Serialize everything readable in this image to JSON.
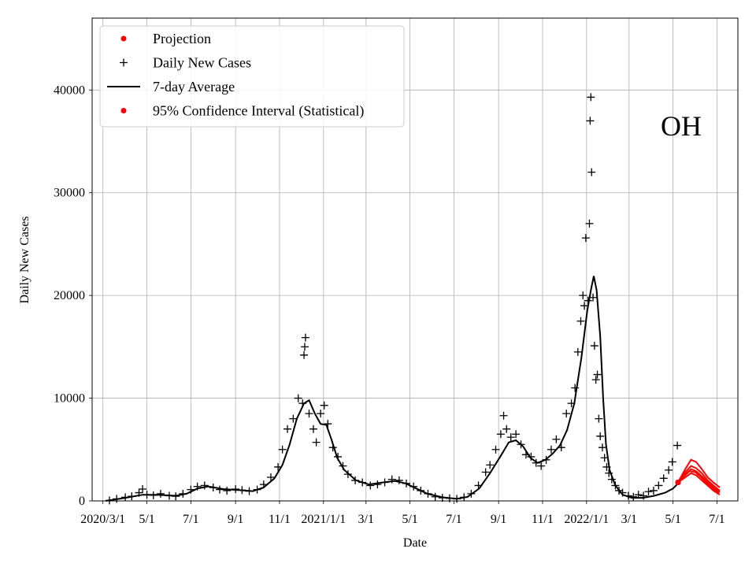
{
  "chart_data": {
    "type": "line",
    "annotation": "OH",
    "xlabel": "Date",
    "ylabel": "Daily New Cases",
    "ylim": [
      0,
      47000
    ],
    "xlim": [
      "2020-02-15",
      "2022-07-30"
    ],
    "grid": true,
    "legend": {
      "placement": "upper-left",
      "entries": [
        {
          "label": "Projection",
          "marker": "dot",
          "color": "#ff0000"
        },
        {
          "label": "Daily New Cases",
          "marker": "plus",
          "color": "#000000"
        },
        {
          "label": "7-day Average",
          "marker": "line",
          "color": "#000000"
        },
        {
          "label": "95% Confidence Interval (Statistical)",
          "marker": "dot",
          "color": "#ff0000"
        }
      ]
    },
    "x_ticks": [
      {
        "date": "2020-03-01",
        "label": "2020/3/1"
      },
      {
        "date": "2020-05-01",
        "label": "5/1"
      },
      {
        "date": "2020-07-01",
        "label": "7/1"
      },
      {
        "date": "2020-09-01",
        "label": "9/1"
      },
      {
        "date": "2020-11-01",
        "label": "11/1"
      },
      {
        "date": "2021-01-01",
        "label": "2021/1/1"
      },
      {
        "date": "2021-03-01",
        "label": "3/1"
      },
      {
        "date": "2021-05-01",
        "label": "5/1"
      },
      {
        "date": "2021-07-01",
        "label": "7/1"
      },
      {
        "date": "2021-09-01",
        "label": "9/1"
      },
      {
        "date": "2021-11-01",
        "label": "11/1"
      },
      {
        "date": "2022-01-01",
        "label": "2022/1/1"
      },
      {
        "date": "2022-03-01",
        "label": "3/1"
      },
      {
        "date": "2022-05-01",
        "label": "5/1"
      },
      {
        "date": "2022-07-01",
        "label": "7/1"
      }
    ],
    "y_ticks": [
      0,
      10000,
      20000,
      30000,
      40000
    ],
    "series": [
      {
        "name": "Daily New Cases",
        "kind": "scatter",
        "marker": "plus",
        "color": "#000000",
        "points": [
          [
            "2020-03-10",
            50
          ],
          [
            "2020-03-20",
            200
          ],
          [
            "2020-04-01",
            350
          ],
          [
            "2020-04-10",
            450
          ],
          [
            "2020-04-20",
            800
          ],
          [
            "2020-04-25",
            1150
          ],
          [
            "2020-05-01",
            600
          ],
          [
            "2020-05-10",
            550
          ],
          [
            "2020-05-20",
            700
          ],
          [
            "2020-06-01",
            500
          ],
          [
            "2020-06-10",
            450
          ],
          [
            "2020-06-20",
            700
          ],
          [
            "2020-07-01",
            1100
          ],
          [
            "2020-07-10",
            1400
          ],
          [
            "2020-07-20",
            1500
          ],
          [
            "2020-08-01",
            1300
          ],
          [
            "2020-08-10",
            1100
          ],
          [
            "2020-08-20",
            1000
          ],
          [
            "2020-09-01",
            1150
          ],
          [
            "2020-09-10",
            1050
          ],
          [
            "2020-09-20",
            950
          ],
          [
            "2020-10-01",
            1100
          ],
          [
            "2020-10-10",
            1600
          ],
          [
            "2020-10-20",
            2300
          ],
          [
            "2020-10-30",
            3300
          ],
          [
            "2020-11-05",
            5000
          ],
          [
            "2020-11-12",
            7000
          ],
          [
            "2020-11-20",
            8000
          ],
          [
            "2020-11-27",
            10000
          ],
          [
            "2020-12-03",
            9500
          ],
          [
            "2020-12-05",
            14200
          ],
          [
            "2020-12-06",
            15000
          ],
          [
            "2020-12-07",
            15900
          ],
          [
            "2020-12-12",
            8500
          ],
          [
            "2020-12-18",
            7000
          ],
          [
            "2020-12-22",
            5700
          ],
          [
            "2020-12-28",
            8500
          ],
          [
            "2021-01-02",
            9300
          ],
          [
            "2021-01-07",
            7500
          ],
          [
            "2021-01-14",
            5200
          ],
          [
            "2021-01-21",
            4300
          ],
          [
            "2021-01-28",
            3400
          ],
          [
            "2021-02-04",
            2600
          ],
          [
            "2021-02-14",
            2000
          ],
          [
            "2021-02-24",
            1800
          ],
          [
            "2021-03-07",
            1500
          ],
          [
            "2021-03-17",
            1600
          ],
          [
            "2021-03-27",
            1800
          ],
          [
            "2021-04-06",
            2100
          ],
          [
            "2021-04-16",
            2000
          ],
          [
            "2021-04-26",
            1700
          ],
          [
            "2021-05-06",
            1400
          ],
          [
            "2021-05-16",
            1000
          ],
          [
            "2021-05-26",
            700
          ],
          [
            "2021-06-05",
            400
          ],
          [
            "2021-06-15",
            300
          ],
          [
            "2021-06-25",
            250
          ],
          [
            "2021-07-05",
            200
          ],
          [
            "2021-07-15",
            350
          ],
          [
            "2021-07-25",
            700
          ],
          [
            "2021-08-04",
            1500
          ],
          [
            "2021-08-14",
            2800
          ],
          [
            "2021-08-20",
            3500
          ],
          [
            "2021-08-28",
            5000
          ],
          [
            "2021-09-04",
            6500
          ],
          [
            "2021-09-08",
            8300
          ],
          [
            "2021-09-12",
            7000
          ],
          [
            "2021-09-18",
            6200
          ],
          [
            "2021-09-25",
            6500
          ],
          [
            "2021-10-02",
            5500
          ],
          [
            "2021-10-09",
            4500
          ],
          [
            "2021-10-16",
            4300
          ],
          [
            "2021-10-23",
            3700
          ],
          [
            "2021-10-30",
            3400
          ],
          [
            "2021-11-06",
            4000
          ],
          [
            "2021-11-13",
            5000
          ],
          [
            "2021-11-20",
            6000
          ],
          [
            "2021-11-27",
            5200
          ],
          [
            "2021-12-04",
            8500
          ],
          [
            "2021-12-11",
            9500
          ],
          [
            "2021-12-16",
            11000
          ],
          [
            "2021-12-20",
            14500
          ],
          [
            "2021-12-24",
            17500
          ],
          [
            "2021-12-27",
            20000
          ],
          [
            "2021-12-29",
            19000
          ],
          [
            "2021-12-31",
            25600
          ],
          [
            "2022-01-03",
            19500
          ],
          [
            "2022-01-05",
            27000
          ],
          [
            "2022-01-06",
            37000
          ],
          [
            "2022-01-07",
            39300
          ],
          [
            "2022-01-08",
            32000
          ],
          [
            "2022-01-10",
            19800
          ],
          [
            "2022-01-12",
            15100
          ],
          [
            "2022-01-14",
            11800
          ],
          [
            "2022-01-16",
            12300
          ],
          [
            "2022-01-18",
            8000
          ],
          [
            "2022-01-20",
            6300
          ],
          [
            "2022-01-23",
            5200
          ],
          [
            "2022-01-26",
            4200
          ],
          [
            "2022-01-29",
            3300
          ],
          [
            "2022-02-01",
            2700
          ],
          [
            "2022-02-05",
            2100
          ],
          [
            "2022-02-10",
            1500
          ],
          [
            "2022-02-15",
            1000
          ],
          [
            "2022-02-20",
            800
          ],
          [
            "2022-02-28",
            500
          ],
          [
            "2022-03-07",
            400
          ],
          [
            "2022-03-14",
            600
          ],
          [
            "2022-03-21",
            500
          ],
          [
            "2022-03-28",
            900
          ],
          [
            "2022-04-04",
            1000
          ],
          [
            "2022-04-11",
            1500
          ],
          [
            "2022-04-18",
            2200
          ],
          [
            "2022-04-25",
            3000
          ],
          [
            "2022-04-30",
            3800
          ],
          [
            "2022-05-07",
            5400
          ]
        ]
      },
      {
        "name": "7-day Average",
        "kind": "line",
        "color": "#000000",
        "points": [
          [
            "2020-03-05",
            0
          ],
          [
            "2020-04-01",
            300
          ],
          [
            "2020-04-25",
            600
          ],
          [
            "2020-05-15",
            600
          ],
          [
            "2020-06-10",
            500
          ],
          [
            "2020-06-25",
            700
          ],
          [
            "2020-07-10",
            1200
          ],
          [
            "2020-07-25",
            1400
          ],
          [
            "2020-08-15",
            1150
          ],
          [
            "2020-09-05",
            1050
          ],
          [
            "2020-09-25",
            950
          ],
          [
            "2020-10-10",
            1300
          ],
          [
            "2020-10-25",
            2200
          ],
          [
            "2020-11-05",
            3500
          ],
          [
            "2020-11-15",
            5500
          ],
          [
            "2020-11-25",
            8000
          ],
          [
            "2020-12-05",
            9500
          ],
          [
            "2020-12-12",
            9800
          ],
          [
            "2020-12-20",
            8500
          ],
          [
            "2020-12-28",
            7500
          ],
          [
            "2021-01-05",
            7400
          ],
          [
            "2021-01-12",
            6000
          ],
          [
            "2021-01-20",
            4200
          ],
          [
            "2021-01-30",
            3000
          ],
          [
            "2021-02-15",
            2000
          ],
          [
            "2021-03-05",
            1600
          ],
          [
            "2021-03-25",
            1800
          ],
          [
            "2021-04-10",
            1950
          ],
          [
            "2021-04-25",
            1700
          ],
          [
            "2021-05-10",
            1200
          ],
          [
            "2021-05-25",
            700
          ],
          [
            "2021-06-15",
            350
          ],
          [
            "2021-07-05",
            200
          ],
          [
            "2021-07-20",
            400
          ],
          [
            "2021-08-05",
            1200
          ],
          [
            "2021-08-20",
            2700
          ],
          [
            "2021-09-05",
            4500
          ],
          [
            "2021-09-15",
            5700
          ],
          [
            "2021-09-25",
            5900
          ],
          [
            "2021-10-05",
            5300
          ],
          [
            "2021-10-15",
            4200
          ],
          [
            "2021-10-25",
            3700
          ],
          [
            "2021-11-05",
            4000
          ],
          [
            "2021-11-15",
            4600
          ],
          [
            "2021-11-25",
            5400
          ],
          [
            "2021-12-05",
            6900
          ],
          [
            "2021-12-15",
            9500
          ],
          [
            "2021-12-25",
            14000
          ],
          [
            "2022-01-02",
            18500
          ],
          [
            "2022-01-07",
            20500
          ],
          [
            "2022-01-11",
            21900
          ],
          [
            "2022-01-15",
            20500
          ],
          [
            "2022-01-20",
            16000
          ],
          [
            "2022-01-24",
            10000
          ],
          [
            "2022-01-28",
            5500
          ],
          [
            "2022-02-02",
            3000
          ],
          [
            "2022-02-10",
            1500
          ],
          [
            "2022-02-20",
            600
          ],
          [
            "2022-03-05",
            300
          ],
          [
            "2022-03-20",
            300
          ],
          [
            "2022-04-05",
            500
          ],
          [
            "2022-04-20",
            800
          ],
          [
            "2022-05-01",
            1200
          ],
          [
            "2022-05-08",
            1700
          ]
        ]
      },
      {
        "name": "Projection",
        "kind": "line",
        "color": "#ff0000",
        "points": [
          [
            "2022-05-08",
            1800
          ],
          [
            "2022-05-16",
            2400
          ],
          [
            "2022-05-24",
            2900
          ],
          [
            "2022-06-01",
            2800
          ],
          [
            "2022-06-09",
            2300
          ],
          [
            "2022-06-17",
            1700
          ],
          [
            "2022-06-25",
            1200
          ],
          [
            "2022-07-04",
            750
          ]
        ]
      },
      {
        "name": "95% Confidence Interval (Statistical)",
        "kind": "band",
        "color": "#ff0000",
        "bounds": [
          [
            [
              "2022-05-08",
              1800
            ],
            [
              "2022-05-18",
              3100
            ],
            [
              "2022-05-26",
              4000
            ],
            [
              "2022-06-02",
              3800
            ],
            [
              "2022-06-10",
              3100
            ],
            [
              "2022-06-18",
              2300
            ],
            [
              "2022-06-26",
              1800
            ],
            [
              "2022-07-05",
              1300
            ]
          ],
          [
            [
              "2022-05-08",
              1800
            ],
            [
              "2022-05-18",
              2800
            ],
            [
              "2022-05-26",
              3400
            ],
            [
              "2022-06-02",
              3200
            ],
            [
              "2022-06-10",
              2700
            ],
            [
              "2022-06-18",
              2000
            ],
            [
              "2022-06-26",
              1500
            ],
            [
              "2022-07-05",
              1000
            ]
          ],
          [
            [
              "2022-05-08",
              1800
            ],
            [
              "2022-05-18",
              2600
            ],
            [
              "2022-05-26",
              3100
            ],
            [
              "2022-06-02",
              2900
            ],
            [
              "2022-06-10",
              2400
            ],
            [
              "2022-06-18",
              1800
            ],
            [
              "2022-06-26",
              1300
            ],
            [
              "2022-07-05",
              850
            ]
          ],
          [
            [
              "2022-05-08",
              1800
            ],
            [
              "2022-05-18",
              2300
            ],
            [
              "2022-05-26",
              2700
            ],
            [
              "2022-06-02",
              2500
            ],
            [
              "2022-06-10",
              2000
            ],
            [
              "2022-06-18",
              1500
            ],
            [
              "2022-06-26",
              1000
            ],
            [
              "2022-07-05",
              600
            ]
          ]
        ]
      }
    ]
  }
}
